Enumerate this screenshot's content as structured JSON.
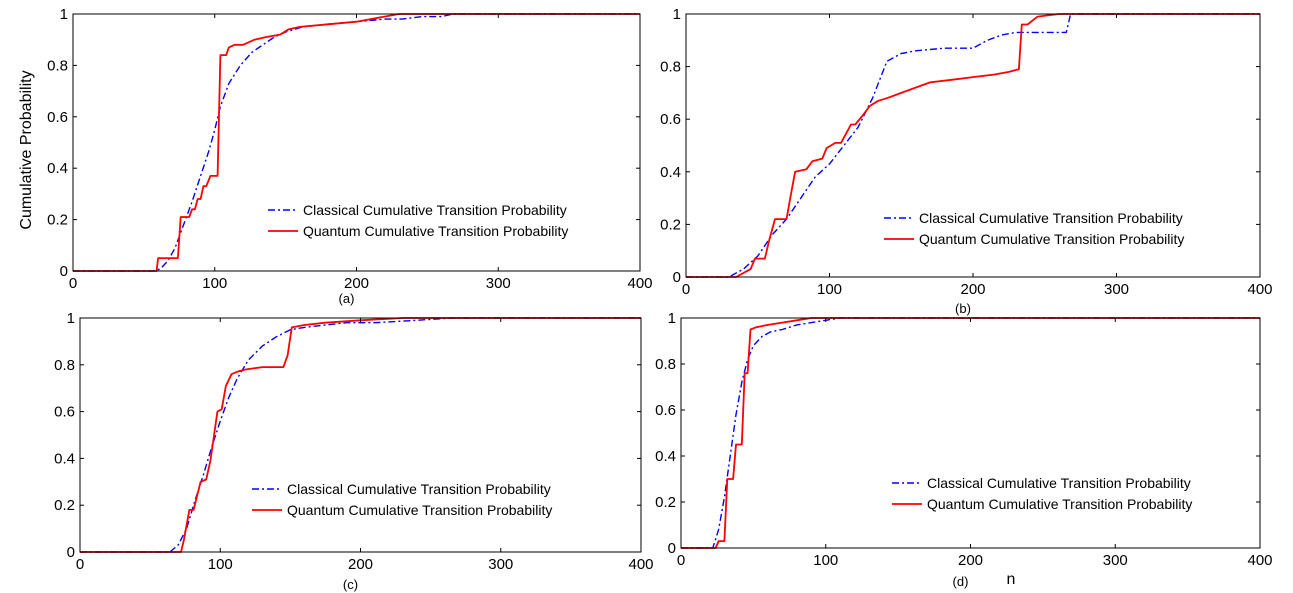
{
  "figure": {
    "ylabel": "Cumulative Probability",
    "xlabel": "n"
  },
  "colors": {
    "classical": "#0000ff",
    "quantum": "#ff0000"
  },
  "chart_data": [
    {
      "type": "line",
      "panel": "(a)",
      "xlim": [
        0,
        400
      ],
      "ylim": [
        0,
        1
      ],
      "xticks": [
        0,
        100,
        200,
        300,
        400
      ],
      "yticks": [
        0,
        0.2,
        0.4,
        0.6,
        0.8,
        1
      ],
      "legend_position": "lower-right",
      "series": [
        {
          "name": "Classical Cumulative Transition Probability",
          "style": "dashdot",
          "x": [
            0,
            58,
            62,
            67,
            72,
            78,
            84,
            90,
            96,
            100,
            104,
            110,
            118,
            126,
            134,
            142,
            150,
            162,
            178,
            200,
            220,
            232,
            246,
            260,
            268,
            400
          ],
          "y": [
            0,
            0,
            0.01,
            0.04,
            0.09,
            0.18,
            0.27,
            0.37,
            0.47,
            0.55,
            0.64,
            0.73,
            0.8,
            0.85,
            0.88,
            0.91,
            0.93,
            0.95,
            0.96,
            0.97,
            0.98,
            0.98,
            0.99,
            0.99,
            1.0,
            1.0
          ]
        },
        {
          "name": "Quantum Cumulative Transition Probability",
          "style": "solid",
          "x": [
            0,
            59,
            60,
            74,
            76,
            82,
            84,
            86,
            88,
            90,
            92,
            94,
            97,
            99,
            102,
            104,
            108,
            110,
            114,
            120,
            128,
            136,
            146,
            152,
            160,
            180,
            200,
            230,
            400
          ],
          "y": [
            0,
            0,
            0.05,
            0.05,
            0.21,
            0.21,
            0.24,
            0.24,
            0.28,
            0.28,
            0.33,
            0.33,
            0.37,
            0.37,
            0.37,
            0.84,
            0.84,
            0.87,
            0.88,
            0.88,
            0.9,
            0.91,
            0.92,
            0.94,
            0.95,
            0.96,
            0.97,
            1.0,
            1.0
          ]
        }
      ]
    },
    {
      "type": "line",
      "panel": "(b)",
      "xlim": [
        0,
        400
      ],
      "ylim": [
        0,
        1
      ],
      "xticks": [
        0,
        100,
        200,
        300,
        400
      ],
      "yticks": [
        0,
        0.2,
        0.4,
        0.6,
        0.8,
        1
      ],
      "legend_position": "lower-right",
      "series": [
        {
          "name": "Classical Cumulative Transition Probability",
          "style": "dashdot",
          "x": [
            0,
            30,
            40,
            50,
            60,
            70,
            80,
            90,
            100,
            110,
            120,
            130,
            140,
            150,
            160,
            180,
            200,
            210,
            220,
            230,
            250,
            265,
            268,
            400
          ],
          "y": [
            0,
            0,
            0.03,
            0.08,
            0.16,
            0.22,
            0.3,
            0.38,
            0.43,
            0.5,
            0.57,
            0.68,
            0.82,
            0.85,
            0.86,
            0.87,
            0.87,
            0.9,
            0.92,
            0.93,
            0.93,
            0.93,
            1.0,
            1.0
          ]
        },
        {
          "name": "Quantum Cumulative Transition Probability",
          "style": "solid",
          "x": [
            0,
            35,
            45,
            48,
            55,
            58,
            62,
            70,
            72,
            76,
            84,
            88,
            95,
            98,
            104,
            108,
            115,
            118,
            124,
            128,
            134,
            140,
            150,
            160,
            170,
            185,
            200,
            215,
            225,
            232,
            234,
            238,
            245,
            260,
            400
          ],
          "y": [
            0,
            0,
            0.03,
            0.07,
            0.07,
            0.14,
            0.22,
            0.22,
            0.28,
            0.4,
            0.41,
            0.44,
            0.45,
            0.49,
            0.51,
            0.51,
            0.58,
            0.58,
            0.62,
            0.65,
            0.67,
            0.68,
            0.7,
            0.72,
            0.74,
            0.75,
            0.76,
            0.77,
            0.78,
            0.79,
            0.96,
            0.96,
            0.99,
            1.0,
            1.0
          ]
        }
      ]
    },
    {
      "type": "line",
      "panel": "(c)",
      "xlim": [
        0,
        400
      ],
      "ylim": [
        0,
        1
      ],
      "xticks": [
        0,
        100,
        200,
        300,
        400
      ],
      "yticks": [
        0,
        0.2,
        0.4,
        0.6,
        0.8,
        1
      ],
      "legend_position": "lower-right",
      "series": [
        {
          "name": "Classical Cumulative Transition Probability",
          "style": "dashdot",
          "x": [
            0,
            64,
            70,
            76,
            82,
            88,
            94,
            100,
            106,
            112,
            120,
            130,
            140,
            150,
            160,
            175,
            190,
            210,
            240,
            265,
            400
          ],
          "y": [
            0,
            0,
            0.03,
            0.1,
            0.22,
            0.33,
            0.45,
            0.56,
            0.66,
            0.74,
            0.82,
            0.88,
            0.92,
            0.95,
            0.96,
            0.97,
            0.98,
            0.98,
            0.99,
            1.0,
            1.0
          ]
        },
        {
          "name": "Quantum Cumulative Transition Probability",
          "style": "solid",
          "x": [
            0,
            72,
            74,
            78,
            81,
            86,
            90,
            93,
            98,
            101,
            104,
            108,
            112,
            118,
            130,
            145,
            148,
            151,
            160,
            175,
            200,
            230,
            400
          ],
          "y": [
            0,
            0,
            0.05,
            0.18,
            0.18,
            0.3,
            0.31,
            0.39,
            0.6,
            0.61,
            0.71,
            0.76,
            0.77,
            0.78,
            0.79,
            0.79,
            0.84,
            0.96,
            0.97,
            0.98,
            0.99,
            1.0,
            1.0
          ]
        }
      ]
    },
    {
      "type": "line",
      "panel": "(d)",
      "xlim": [
        0,
        400
      ],
      "ylim": [
        0,
        1
      ],
      "xticks": [
        0,
        100,
        200,
        300,
        400
      ],
      "yticks": [
        0,
        0.2,
        0.4,
        0.6,
        0.8,
        1
      ],
      "legend_position": "lower-right",
      "series": [
        {
          "name": "Classical Cumulative Transition Probability",
          "style": "dashdot",
          "x": [
            0,
            22,
            26,
            30,
            34,
            38,
            42,
            46,
            50,
            56,
            62,
            70,
            80,
            90,
            100,
            110,
            400
          ],
          "y": [
            0,
            0,
            0.08,
            0.22,
            0.4,
            0.58,
            0.72,
            0.82,
            0.88,
            0.92,
            0.94,
            0.95,
            0.97,
            0.98,
            0.99,
            1.0,
            1.0
          ]
        },
        {
          "name": "Quantum Cumulative Transition Probability",
          "style": "solid",
          "x": [
            0,
            24,
            26,
            30,
            32,
            36,
            38,
            42,
            44,
            46,
            48,
            52,
            60,
            70,
            80,
            90,
            400
          ],
          "y": [
            0,
            0,
            0.03,
            0.03,
            0.3,
            0.3,
            0.45,
            0.45,
            0.76,
            0.76,
            0.95,
            0.96,
            0.97,
            0.98,
            0.99,
            1.0,
            1.0
          ]
        }
      ]
    }
  ]
}
